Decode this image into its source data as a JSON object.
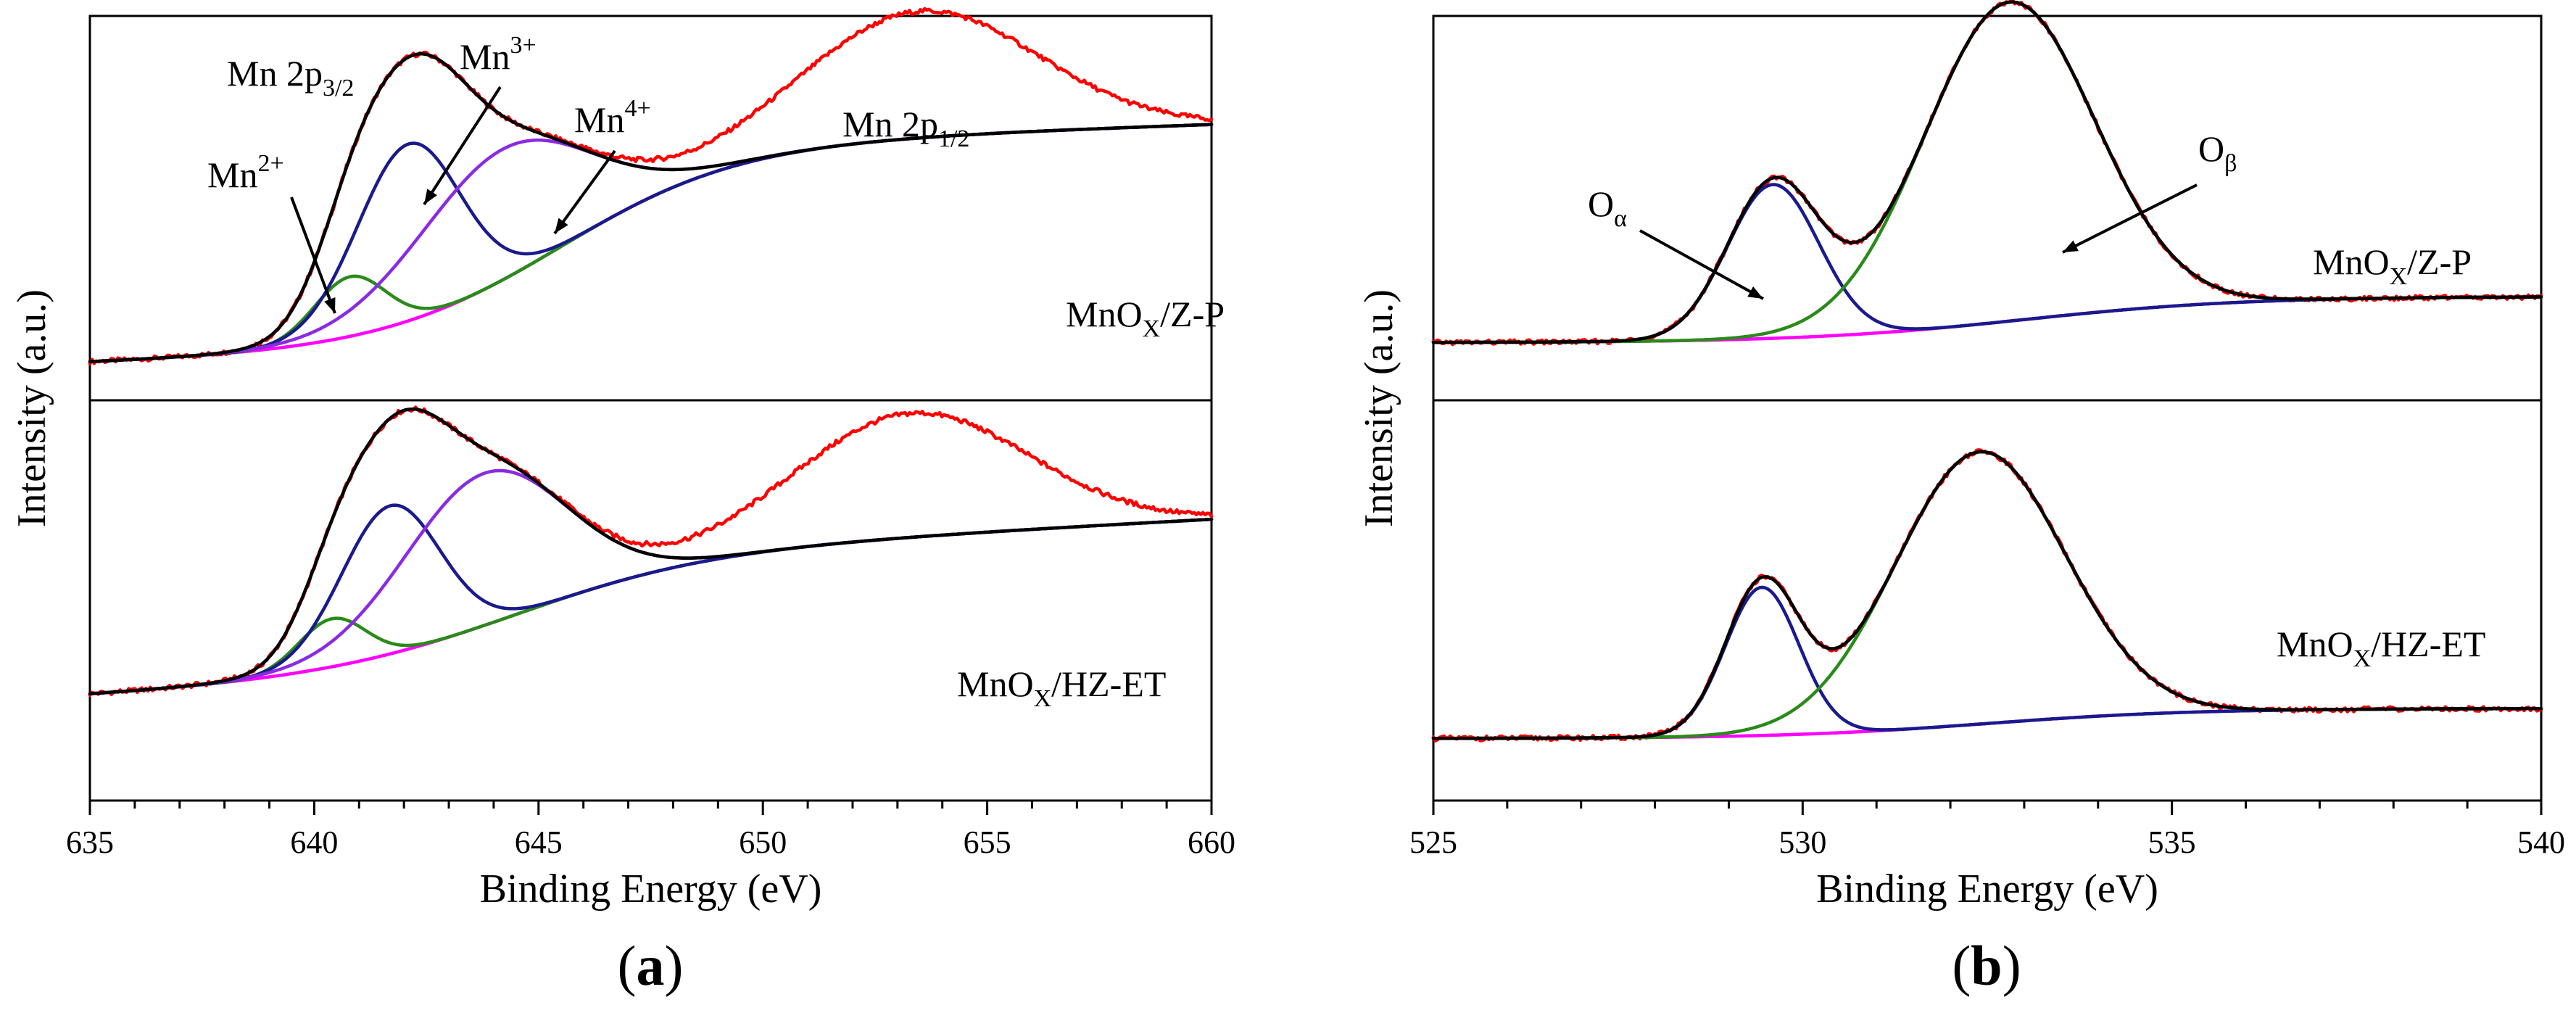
{
  "chart_data": [
    {
      "panel_label": "(a)",
      "panel_label_parts": {
        "open": "(",
        "letter": "a",
        "close": ")"
      },
      "type": "line",
      "xlabel": "Binding Energy (eV)",
      "ylabel": "Intensity (a.u.)",
      "xlim": [
        635,
        660
      ],
      "x_ticks": [
        635,
        640,
        645,
        650,
        655,
        660
      ],
      "x_minor_step": 1,
      "grid": false,
      "subplots": [
        {
          "sample_label": {
            "base": "MnO",
            "sub": "X",
            "rest": "/Z-P"
          },
          "ylim": [
            0,
            1
          ],
          "background": {
            "type": "sigmoid",
            "y0": 0.14,
            "y1": 0.66,
            "center": 645.5,
            "width": 2.0,
            "slope": 0.004
          },
          "peaks": [
            {
              "label_text": {
                "base": "Mn",
                "sup": "2+"
              },
              "center": 640.8,
              "height": 0.155,
              "width": 0.8,
              "color": "#2a8a1a"
            },
            {
              "label_text": {
                "base": "Mn",
                "sup": "3+"
              },
              "center": 642.1,
              "height": 0.46,
              "width": 1.15,
              "color": "#1a1a8c"
            },
            {
              "label_text": {
                "base": "Mn",
                "sup": "4+"
              },
              "center": 644.2,
              "height": 0.34,
              "width": 1.9,
              "color": "#8a2be2"
            }
          ],
          "satellite": {
            "center": 653.5,
            "height": 0.33,
            "width": 2.6
          },
          "series": [
            {
              "color": "#ff0000",
              "values": "experimental"
            },
            {
              "color": "#000000",
              "values": "envelope"
            },
            {
              "color": "#ff00ff",
              "values": "background"
            }
          ],
          "annotations": [
            {
              "text": {
                "base": "Mn 2p",
                "sub": "3/2"
              },
              "x": 642.0,
              "y": 0.9
            },
            {
              "text": {
                "base": "Mn 2p",
                "sub": "1/2"
              },
              "x": 653.5,
              "y": 0.75
            }
          ]
        },
        {
          "sample_label": {
            "base": "MnO",
            "sub": "X",
            "rest": "/HZ-ET"
          },
          "ylim": [
            0,
            1
          ],
          "background": {
            "type": "sigmoid",
            "y0": 0.32,
            "y1": 0.61,
            "center": 644.5,
            "width": 2.2,
            "slope": 0.006
          },
          "peaks": [
            {
              "center": 640.4,
              "height": 0.12,
              "width": 0.75,
              "color": "#2a8a1a"
            },
            {
              "center": 641.7,
              "height": 0.37,
              "width": 1.1,
              "color": "#1a1a8c"
            },
            {
              "center": 643.8,
              "height": 0.38,
              "width": 1.8,
              "color": "#8a2be2"
            }
          ],
          "satellite": {
            "center": 653.3,
            "height": 0.31,
            "width": 2.6
          },
          "series": [
            {
              "color": "#ff0000",
              "values": "experimental"
            },
            {
              "color": "#000000",
              "values": "envelope"
            },
            {
              "color": "#ff00ff",
              "values": "background"
            }
          ]
        }
      ]
    },
    {
      "panel_label": "(b)",
      "panel_label_parts": {
        "open": "(",
        "letter": "b",
        "close": ")"
      },
      "type": "line",
      "xlabel": "Binding Energy (eV)",
      "ylabel": "Intensity (a.u.)",
      "xlim": [
        525,
        540
      ],
      "x_ticks": [
        525,
        530,
        535,
        540
      ],
      "x_minor_step": 1,
      "grid": false,
      "subplots": [
        {
          "sample_label": {
            "base": "MnO",
            "sub": "X",
            "rest": "/Z-P"
          },
          "ylim": [
            0,
            1
          ],
          "background": {
            "type": "sigmoid",
            "y0": 0.15,
            "y1": 0.27,
            "center": 533.0,
            "width": 1.5
          },
          "peaks": [
            {
              "label_text": {
                "base": "O",
                "sub": "α"
              },
              "center": 529.6,
              "height": 0.4,
              "width": 0.62,
              "color": "#1a1a8c"
            },
            {
              "label_text": {
                "base": "O",
                "sub": "β"
              },
              "center": 532.8,
              "height": 0.83,
              "width": 1.15,
              "color": "#2a8a1a"
            }
          ],
          "series": [
            {
              "color": "#ff0000",
              "values": "experimental"
            },
            {
              "color": "#000000",
              "values": "envelope"
            },
            {
              "color": "#ff00ff",
              "values": "background"
            }
          ]
        },
        {
          "sample_label": {
            "base": "MnO",
            "sub": "X",
            "rest": "/HZ-ET"
          },
          "ylim": [
            0,
            1
          ],
          "background": {
            "type": "sigmoid",
            "y0": 0.155,
            "y1": 0.23,
            "center": 532.5,
            "width": 1.4
          },
          "peaks": [
            {
              "center": 529.45,
              "height": 0.37,
              "width": 0.5,
              "color": "#1a1a8c"
            },
            {
              "center": 532.4,
              "height": 0.68,
              "width": 1.15,
              "color": "#2a8a1a"
            }
          ],
          "series": [
            {
              "color": "#ff0000",
              "values": "experimental"
            },
            {
              "color": "#000000",
              "values": "envelope"
            },
            {
              "color": "#ff00ff",
              "values": "background"
            }
          ]
        }
      ]
    }
  ]
}
